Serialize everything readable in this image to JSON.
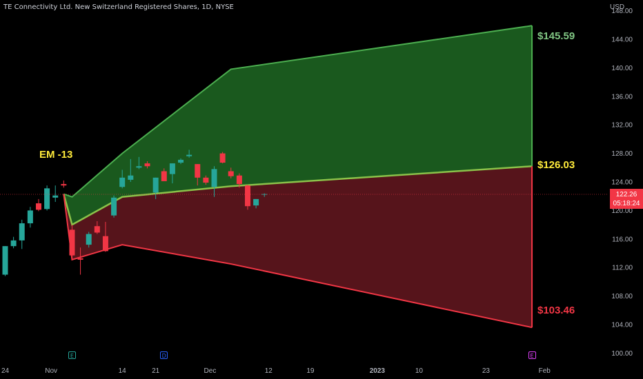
{
  "header": {
    "title": "TE Connectivity Ltd. New Switzerland Registered Shares, 1D, NYSE",
    "currency": "USD"
  },
  "annotations": {
    "em_label": "EM -13",
    "upper_level": "$145.59",
    "mid_level": "$126.03",
    "lower_level": "$103.46"
  },
  "price_tag": {
    "price": "122.26",
    "countdown": "05:18:24"
  },
  "colors": {
    "up": "#26a69a",
    "down": "#f23645",
    "upper_fill": "#1b5e20",
    "lower_fill": "#5b151c",
    "upper_line": "#4caf50",
    "lower_line": "#f23645",
    "mid_line": "#8bc34a"
  },
  "events": [
    {
      "label": "E",
      "x_index": 8,
      "color": "#26a69a"
    },
    {
      "label": "D",
      "x_index": 19,
      "color": "#2962ff"
    },
    {
      "label": "E",
      "x_index": 63,
      "color": "#e040fb"
    }
  ],
  "chart_data": {
    "type": "candlestick",
    "y_ticks": [
      100,
      104,
      108,
      112,
      116,
      120,
      124,
      128,
      132,
      136,
      140,
      144,
      148
    ],
    "y_tick_labels": [
      "100.00",
      "104.00",
      "108.00",
      "112.00",
      "116.00",
      "120.00",
      "124.00",
      "128.00",
      "132.00",
      "136.00",
      "140.00",
      "144.00",
      "148.00"
    ],
    "ylim": [
      98.5,
      149.5
    ],
    "x_ticks": [
      {
        "label": "24",
        "index": 0,
        "bold": false
      },
      {
        "label": "Nov",
        "index": 5.5,
        "bold": false
      },
      {
        "label": "14",
        "index": 14,
        "bold": false
      },
      {
        "label": "21",
        "index": 18,
        "bold": false
      },
      {
        "label": "Dec",
        "index": 24.5,
        "bold": false
      },
      {
        "label": "12",
        "index": 31.5,
        "bold": false
      },
      {
        "label": "19",
        "index": 36.5,
        "bold": false
      },
      {
        "label": "2023",
        "index": 44.5,
        "bold": true
      },
      {
        "label": "10",
        "index": 49.5,
        "bold": false
      },
      {
        "label": "23",
        "index": 57.5,
        "bold": false
      },
      {
        "label": "Feb",
        "index": 64.5,
        "bold": false
      }
    ],
    "candles": [
      {
        "o": 111.0,
        "h": 115.0,
        "l": 110.8,
        "c": 115.0
      },
      {
        "o": 115.0,
        "h": 116.3,
        "l": 114.7,
        "c": 115.8
      },
      {
        "o": 115.8,
        "h": 118.7,
        "l": 114.6,
        "c": 118.2
      },
      {
        "o": 118.2,
        "h": 120.5,
        "l": 117.6,
        "c": 120.0
      },
      {
        "o": 121.0,
        "h": 121.6,
        "l": 119.9,
        "c": 120.1
      },
      {
        "o": 120.2,
        "h": 123.5,
        "l": 120.0,
        "c": 123.1
      },
      {
        "o": 121.8,
        "h": 123.5,
        "l": 121.2,
        "c": 122.1
      },
      {
        "o": 123.7,
        "h": 124.2,
        "l": 123.2,
        "c": 123.5
      },
      {
        "o": 117.3,
        "h": 118.0,
        "l": 113.2,
        "c": 113.7
      },
      {
        "o": 113.3,
        "h": 114.8,
        "l": 111.0,
        "c": 113.1
      },
      {
        "o": 115.2,
        "h": 117.0,
        "l": 114.8,
        "c": 116.7
      },
      {
        "o": 117.8,
        "h": 118.5,
        "l": 116.7,
        "c": 116.9
      },
      {
        "o": 116.4,
        "h": 118.4,
        "l": 114.2,
        "c": 114.3
      },
      {
        "o": 119.3,
        "h": 122.1,
        "l": 119.0,
        "c": 121.8
      },
      {
        "o": 123.3,
        "h": 125.7,
        "l": 123.1,
        "c": 124.6
      },
      {
        "o": 124.3,
        "h": 127.2,
        "l": 124.0,
        "c": 124.9
      },
      {
        "o": 126.0,
        "h": 127.5,
        "l": 125.8,
        "c": 126.2
      },
      {
        "o": 126.6,
        "h": 126.9,
        "l": 125.9,
        "c": 126.2
      },
      {
        "o": 122.5,
        "h": 124.6,
        "l": 121.6,
        "c": 124.6
      },
      {
        "o": 125.5,
        "h": 125.9,
        "l": 124.1,
        "c": 124.1
      },
      {
        "o": 125.1,
        "h": 126.6,
        "l": 123.8,
        "c": 126.6
      },
      {
        "o": 126.7,
        "h": 127.3,
        "l": 126.5,
        "c": 127.1
      },
      {
        "o": 127.6,
        "h": 128.5,
        "l": 127.4,
        "c": 127.8
      },
      {
        "o": 126.5,
        "h": 126.5,
        "l": 123.5,
        "c": 124.6
      },
      {
        "o": 124.6,
        "h": 124.9,
        "l": 123.6,
        "c": 123.9
      },
      {
        "o": 123.3,
        "h": 126.2,
        "l": 121.9,
        "c": 125.8
      },
      {
        "o": 128.0,
        "h": 128.2,
        "l": 126.6,
        "c": 126.7
      },
      {
        "o": 125.5,
        "h": 126.0,
        "l": 124.5,
        "c": 124.8
      },
      {
        "o": 124.9,
        "h": 125.2,
        "l": 123.2,
        "c": 123.7
      },
      {
        "o": 123.5,
        "h": 123.6,
        "l": 120.1,
        "c": 120.6
      },
      {
        "o": 120.7,
        "h": 121.6,
        "l": 120.3,
        "c": 121.6
      },
      {
        "o": 122.3,
        "h": 122.4,
        "l": 121.9,
        "c": 122.3
      }
    ],
    "envelope": {
      "upper": [
        [
          7,
          122.3
        ],
        [
          8,
          121.9
        ],
        [
          14,
          128.0
        ],
        [
          27,
          139.8
        ],
        [
          63,
          145.9
        ]
      ],
      "mid": [
        [
          7,
          122.3
        ],
        [
          8,
          118.0
        ],
        [
          14,
          121.9
        ],
        [
          27,
          123.4
        ],
        [
          63,
          126.2
        ]
      ],
      "lower": [
        [
          7,
          122.3
        ],
        [
          8,
          113.1
        ],
        [
          14,
          115.2
        ],
        [
          27,
          112.5
        ],
        [
          63,
          103.6
        ]
      ]
    },
    "last_price": 122.26
  }
}
